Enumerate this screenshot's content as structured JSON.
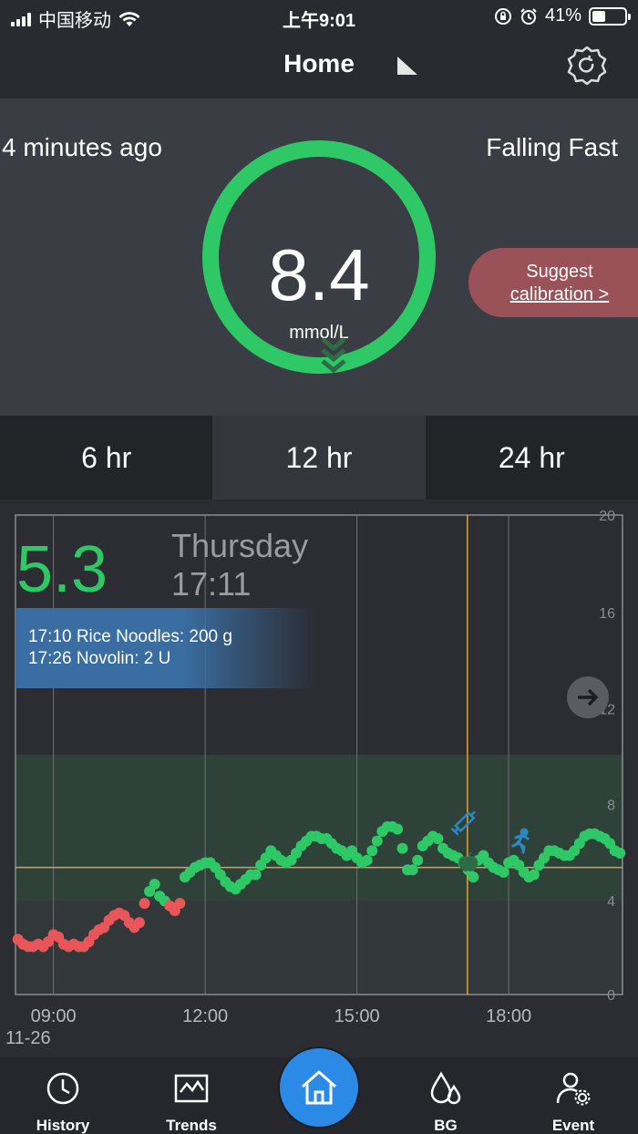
{
  "status_bar": {
    "carrier": "中国移动",
    "time": "上午9:01",
    "battery": "41%",
    "battery_level": 0.41
  },
  "header": {
    "title": "Home",
    "icons": [
      "flag-icon",
      "settings-icon"
    ]
  },
  "reading": {
    "ago": "4 minutes ago",
    "value": "8.4",
    "unit": "mmol/L",
    "trend": "Falling Fast",
    "suggest_line1": "Suggest",
    "suggest_link": "calibration >",
    "ring_color": "#2ec866"
  },
  "range_tabs": [
    {
      "label": "6 hr",
      "active": false
    },
    {
      "label": "12 hr",
      "active": true
    },
    {
      "label": "24 hr",
      "active": false
    }
  ],
  "chart": {
    "selected_value": "5.3",
    "selected_day": "Thursday",
    "selected_time": "17:11",
    "events": [
      "17:10 Rice Noodles: 200 g",
      "17:26 Novolin: 2 U"
    ],
    "date_label": "11-26",
    "colors": {
      "in_range": "#2ec866",
      "low": "#e8565a",
      "target_band": "#2f4a3e",
      "low_band": "#3f4a45",
      "cursor": "#d8a24a"
    }
  },
  "chart_data": {
    "type": "scatter",
    "title": "",
    "xlabel": "",
    "ylabel": "",
    "x_ticks": [
      "09:00",
      "12:00",
      "15:00",
      "18:00"
    ],
    "y_ticks": [
      0,
      4,
      8,
      12,
      16,
      20
    ],
    "ylim": [
      0,
      20
    ],
    "xlim_hours": [
      8.25,
      20.25
    ],
    "target_range": [
      3.9,
      10.0
    ],
    "reference_line": 5.3,
    "cursor_time": "17:11",
    "low_threshold": 3.9,
    "series": [
      {
        "values": [
          [
            8.3,
            2.3
          ],
          [
            8.4,
            2.1
          ],
          [
            8.5,
            2.0
          ],
          [
            8.6,
            2.0
          ],
          [
            8.7,
            2.1
          ],
          [
            8.8,
            2.0
          ],
          [
            8.9,
            2.2
          ],
          [
            9.0,
            2.5
          ],
          [
            9.1,
            2.4
          ],
          [
            9.2,
            2.1
          ],
          [
            9.3,
            2.0
          ],
          [
            9.4,
            2.1
          ],
          [
            9.5,
            2.0
          ],
          [
            9.6,
            2.0
          ],
          [
            9.7,
            2.2
          ],
          [
            9.8,
            2.5
          ],
          [
            9.9,
            2.7
          ],
          [
            10.0,
            2.8
          ],
          [
            10.1,
            3.1
          ],
          [
            10.2,
            3.3
          ],
          [
            10.3,
            3.4
          ],
          [
            10.4,
            3.3
          ],
          [
            10.5,
            3.0
          ],
          [
            10.6,
            2.8
          ],
          [
            10.7,
            3.0
          ],
          [
            10.8,
            3.8
          ],
          [
            10.9,
            4.3
          ],
          [
            11.0,
            4.6
          ],
          [
            11.1,
            4.1
          ],
          [
            11.2,
            3.9
          ],
          [
            11.3,
            3.7
          ],
          [
            11.4,
            3.5
          ],
          [
            11.5,
            3.8
          ],
          [
            11.6,
            4.9
          ],
          [
            11.7,
            5.1
          ],
          [
            11.8,
            5.3
          ],
          [
            11.9,
            5.4
          ],
          [
            12.0,
            5.5
          ],
          [
            12.1,
            5.5
          ],
          [
            12.2,
            5.3
          ],
          [
            12.3,
            5.0
          ],
          [
            12.4,
            4.7
          ],
          [
            12.5,
            4.5
          ],
          [
            12.6,
            4.4
          ],
          [
            12.7,
            4.6
          ],
          [
            12.8,
            4.8
          ],
          [
            12.9,
            5.0
          ],
          [
            13.0,
            5.0
          ],
          [
            13.1,
            5.4
          ],
          [
            13.2,
            5.7
          ],
          [
            13.3,
            6.0
          ],
          [
            13.4,
            5.8
          ],
          [
            13.5,
            5.6
          ],
          [
            13.6,
            5.5
          ],
          [
            13.7,
            5.6
          ],
          [
            13.8,
            5.9
          ],
          [
            13.9,
            6.2
          ],
          [
            14.0,
            6.4
          ],
          [
            14.1,
            6.6
          ],
          [
            14.2,
            6.6
          ],
          [
            14.3,
            6.5
          ],
          [
            14.4,
            6.5
          ],
          [
            14.5,
            6.3
          ],
          [
            14.6,
            6.1
          ],
          [
            14.7,
            6.0
          ],
          [
            14.8,
            5.8
          ],
          [
            14.9,
            6.0
          ],
          [
            15.0,
            5.7
          ],
          [
            15.1,
            5.5
          ],
          [
            15.2,
            5.6
          ],
          [
            15.3,
            6.0
          ],
          [
            15.4,
            6.4
          ],
          [
            15.5,
            6.8
          ],
          [
            15.6,
            7.0
          ],
          [
            15.7,
            7.0
          ],
          [
            15.8,
            6.9
          ],
          [
            15.9,
            6.1
          ],
          [
            16.0,
            5.2
          ],
          [
            16.1,
            5.2
          ],
          [
            16.2,
            5.6
          ],
          [
            16.3,
            6.2
          ],
          [
            16.4,
            6.4
          ],
          [
            16.5,
            6.6
          ],
          [
            16.6,
            6.5
          ],
          [
            16.7,
            6.1
          ],
          [
            16.8,
            5.9
          ],
          [
            16.9,
            5.8
          ],
          [
            17.0,
            5.7
          ],
          [
            17.1,
            5.5
          ],
          [
            17.2,
            5.2
          ],
          [
            17.3,
            4.9
          ],
          [
            17.4,
            5.6
          ],
          [
            17.5,
            5.8
          ],
          [
            17.6,
            5.5
          ],
          [
            17.7,
            5.3
          ],
          [
            17.8,
            5.2
          ],
          [
            17.9,
            5.1
          ],
          [
            18.0,
            5.5
          ],
          [
            18.1,
            5.6
          ],
          [
            18.2,
            5.4
          ],
          [
            18.3,
            5.1
          ],
          [
            18.4,
            4.9
          ],
          [
            18.5,
            5.0
          ],
          [
            18.6,
            5.4
          ],
          [
            18.7,
            5.7
          ],
          [
            18.8,
            6.0
          ],
          [
            18.9,
            6.0
          ],
          [
            19.0,
            5.9
          ],
          [
            19.1,
            5.8
          ],
          [
            19.2,
            5.8
          ],
          [
            19.3,
            6.0
          ],
          [
            19.4,
            6.3
          ],
          [
            19.5,
            6.6
          ],
          [
            19.6,
            6.7
          ],
          [
            19.7,
            6.7
          ],
          [
            19.8,
            6.6
          ],
          [
            19.9,
            6.5
          ],
          [
            20.0,
            6.3
          ],
          [
            20.1,
            6.0
          ],
          [
            20.2,
            5.9
          ]
        ]
      }
    ],
    "markers": [
      {
        "icon": "insulin-syringe-icon",
        "time": 17.2
      },
      {
        "icon": "apple-icon",
        "time": 17.2
      },
      {
        "icon": "running-icon",
        "time": 18.25
      }
    ]
  },
  "bottom_nav": [
    {
      "label": "History",
      "icon": "clock-icon"
    },
    {
      "label": "Trends",
      "icon": "trends-chart-icon"
    },
    {
      "label": "",
      "icon": "home-icon"
    },
    {
      "label": "BG",
      "icon": "blood-drop-icon"
    },
    {
      "label": "Event",
      "icon": "user-settings-icon"
    }
  ]
}
